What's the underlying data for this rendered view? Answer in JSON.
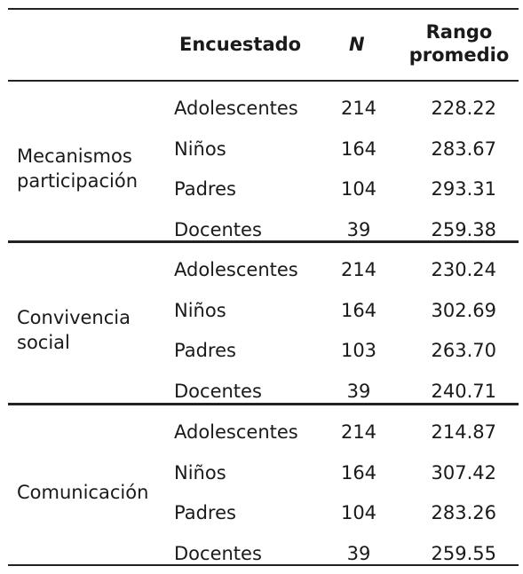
{
  "header": {
    "encuestado": "Encuestado",
    "n": "N",
    "rango_line1": "Rango",
    "rango_line2": "promedio"
  },
  "groups": [
    {
      "label_line1": "Mecanismos",
      "label_line2": "participación",
      "rows": [
        {
          "encuestado": "Adolescentes",
          "n": "214",
          "rango": "228.22"
        },
        {
          "encuestado": "Niños",
          "n": "164",
          "rango": "283.67"
        },
        {
          "encuestado": "Padres",
          "n": "104",
          "rango": "293.31"
        },
        {
          "encuestado": "Docentes",
          "n": "39",
          "rango": "259.38"
        }
      ]
    },
    {
      "label_line1": "Convivencia",
      "label_line2": "social",
      "rows": [
        {
          "encuestado": "Adolescentes",
          "n": "214",
          "rango": "230.24"
        },
        {
          "encuestado": "Niños",
          "n": "164",
          "rango": "302.69"
        },
        {
          "encuestado": "Padres",
          "n": "103",
          "rango": "263.70"
        },
        {
          "encuestado": "Docentes",
          "n": "39",
          "rango": "240.71"
        }
      ]
    },
    {
      "label_line1": "Comunicación",
      "label_line2": "",
      "rows": [
        {
          "encuestado": "Adolescentes",
          "n": "214",
          "rango": "214.87"
        },
        {
          "encuestado": "Niños",
          "n": "164",
          "rango": "307.42"
        },
        {
          "encuestado": "Padres",
          "n": "104",
          "rango": "283.26"
        },
        {
          "encuestado": "Docentes",
          "n": "39",
          "rango": "259.55"
        }
      ]
    }
  ]
}
